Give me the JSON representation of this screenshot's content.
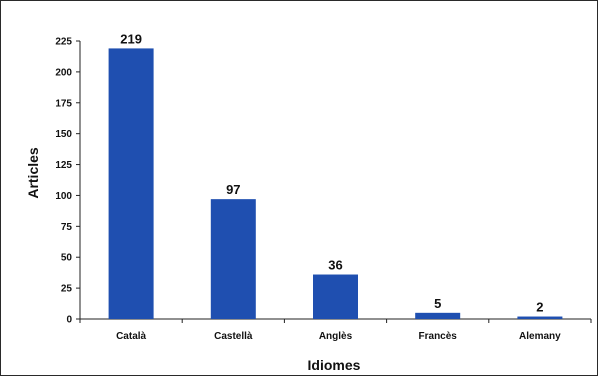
{
  "chart_data": {
    "type": "bar",
    "categories": [
      "Català",
      "Castellà",
      "Anglès",
      "Francès",
      "Alemany"
    ],
    "values": [
      219,
      97,
      36,
      5,
      2
    ],
    "data_labels": [
      "219",
      "97",
      "36",
      "5",
      "2"
    ],
    "xlabel": "Idiomes",
    "ylabel": "Articles",
    "ylim": [
      0,
      225
    ],
    "yticks": [
      0,
      25,
      50,
      75,
      100,
      125,
      150,
      175,
      200,
      225
    ],
    "ytick_labels": [
      "0",
      "25",
      "50",
      "75",
      "100",
      "125",
      "150",
      "175",
      "200",
      "225"
    ],
    "grid": false,
    "legend": "none",
    "colors": {
      "bar": "#1f4fb0",
      "axis": "#222222",
      "frame": "#2a2a2a"
    }
  }
}
